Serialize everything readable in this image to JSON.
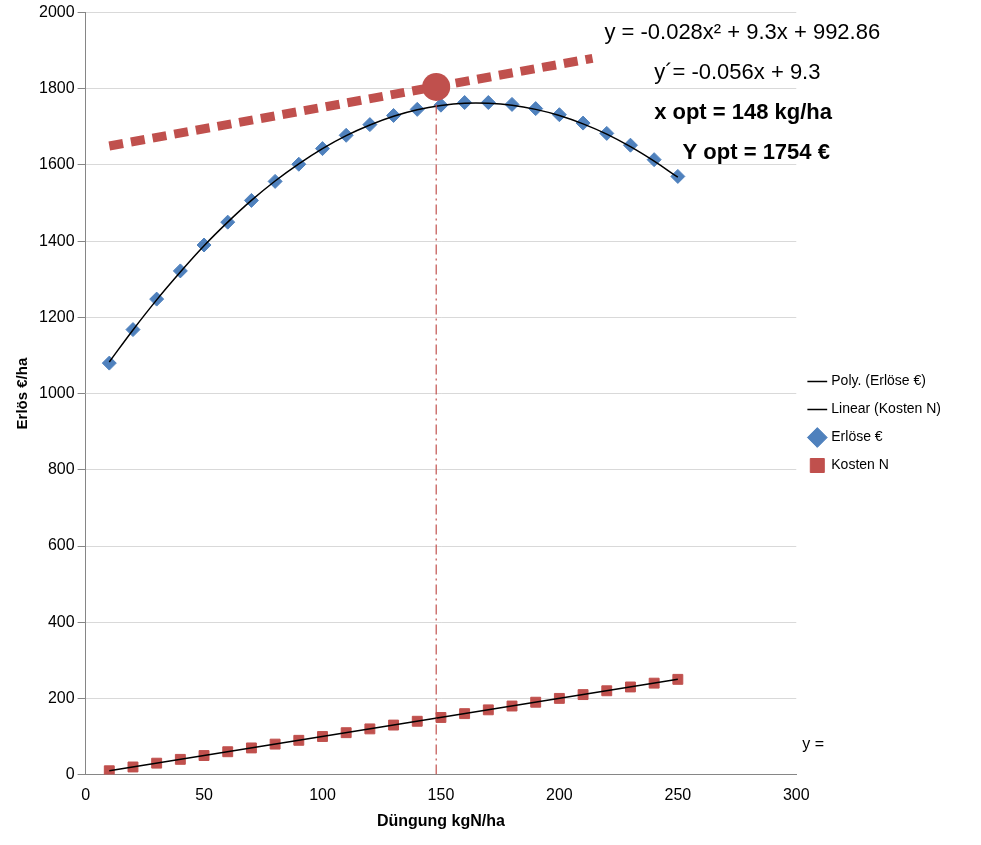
{
  "chart_data": {
    "type": "scatter",
    "x_label": "Düngung kgN/ha",
    "y_label": "Erlös €/ha",
    "xlim": [
      0,
      300
    ],
    "xticks": [
      0,
      50,
      100,
      150,
      200,
      250,
      300
    ],
    "ylim": [
      0,
      2000
    ],
    "yticks": [
      0,
      200,
      400,
      600,
      800,
      1000,
      1200,
      1400,
      1600,
      1800,
      2000
    ],
    "grid": "y",
    "legend": "right",
    "series": [
      {
        "name": "Erlöse €",
        "type": "scatter",
        "marker": "diamond",
        "color": "#4f81bd",
        "x": [
          10,
          20,
          30,
          40,
          50,
          60,
          70,
          80,
          90,
          100,
          110,
          120,
          130,
          140,
          150,
          160,
          170,
          180,
          190,
          200,
          210,
          220,
          230,
          240,
          250
        ],
        "values": [
          1080,
          1168,
          1248,
          1322,
          1390,
          1450,
          1507,
          1557,
          1602,
          1643,
          1678,
          1706,
          1730,
          1746,
          1757,
          1764,
          1764,
          1759,
          1748,
          1732,
          1710,
          1683,
          1652,
          1614,
          1570
        ]
      },
      {
        "name": "Kosten N",
        "type": "scatter",
        "marker": "square",
        "color": "#c0504d",
        "x": [
          10,
          20,
          30,
          40,
          50,
          60,
          70,
          80,
          90,
          100,
          110,
          120,
          130,
          140,
          150,
          160,
          170,
          180,
          190,
          200,
          210,
          220,
          230,
          240,
          250
        ],
        "values": [
          10,
          20,
          30,
          40,
          50,
          60,
          70,
          80,
          90,
          100,
          110,
          120,
          130,
          140,
          150,
          160,
          170,
          180,
          190,
          200,
          210,
          220,
          230,
          240,
          250
        ]
      },
      {
        "name": "Poly. (Erlöse €)",
        "type": "line",
        "line_style": "solid",
        "color": "#000000",
        "x": [
          10,
          20,
          30,
          40,
          50,
          60,
          70,
          80,
          90,
          100,
          110,
          120,
          130,
          140,
          150,
          160,
          170,
          180,
          190,
          200,
          210,
          220,
          230,
          240,
          250
        ],
        "values": [
          1083,
          1167,
          1246,
          1319,
          1388,
          1450,
          1507,
          1558,
          1603,
          1643,
          1677,
          1705,
          1728,
          1745,
          1756,
          1762,
          1762,
          1757,
          1746,
          1730,
          1708,
          1681,
          1648,
          1610,
          1568
        ]
      },
      {
        "name": "Linear (Kosten N)",
        "type": "line",
        "line_style": "solid",
        "color": "#000000",
        "x": [
          10,
          250
        ],
        "values": [
          10,
          250
        ]
      }
    ],
    "tangent_line": {
      "x": [
        10,
        214
      ],
      "values": [
        1650,
        1880
      ],
      "color": "#c0504d",
      "line_style": "dashed"
    },
    "optimum_point": {
      "x": 148,
      "y": 1805,
      "color": "#c0504d"
    },
    "optimum_line": {
      "x": [
        148,
        148
      ],
      "values": [
        0,
        1805
      ],
      "color": "#c0504d",
      "line_style": "dashdot"
    },
    "annotations": [
      "y = -0.028x² + 9.3x + 992.86",
      "y´= -0.056x + 9.3",
      "x opt = 148 kg/ha",
      "Y opt = 1754 €",
      "y ="
    ]
  }
}
